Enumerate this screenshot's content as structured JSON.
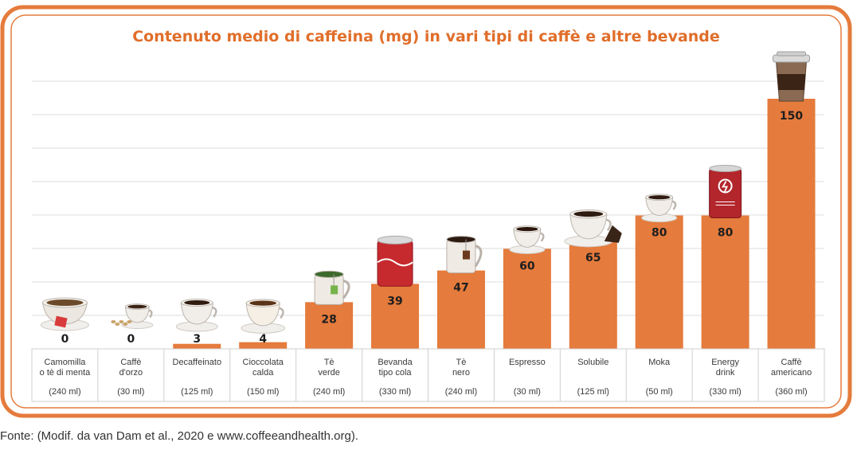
{
  "chart_data": {
    "type": "bar",
    "title": "Contenuto medio di caffeina (mg) in vari tipi di caffè e altre bevande",
    "xlabel": "",
    "ylabel": "",
    "ylim": [
      0,
      150
    ],
    "grid": true,
    "categories": [
      {
        "lines": [
          "Camomilla",
          "o tè di menta"
        ],
        "volume": "(240 ml)",
        "drink": "herbal-tea-cup"
      },
      {
        "lines": [
          "Caffè",
          "d'orzo"
        ],
        "volume": "(30 ml)",
        "drink": "barley-coffee-cup"
      },
      {
        "lines": [
          "Decaffeinato"
        ],
        "volume": "(125 ml)",
        "drink": "decaf-coffee-cup"
      },
      {
        "lines": [
          "Cioccolata",
          "calda"
        ],
        "volume": "(150 ml)",
        "drink": "hot-chocolate-cup"
      },
      {
        "lines": [
          "Tè",
          "verde"
        ],
        "volume": "(240 ml)",
        "drink": "green-tea-mug"
      },
      {
        "lines": [
          "Bevanda",
          "tipo cola"
        ],
        "volume": "(330 ml)",
        "drink": "cola-can"
      },
      {
        "lines": [
          "Tè",
          "nero"
        ],
        "volume": "(240 ml)",
        "drink": "black-tea-mug"
      },
      {
        "lines": [
          "Espresso"
        ],
        "volume": "(30 ml)",
        "drink": "espresso-cup"
      },
      {
        "lines": [
          "Solubile"
        ],
        "volume": "(125 ml)",
        "drink": "instant-coffee-cup"
      },
      {
        "lines": [
          "Moka"
        ],
        "volume": "(50 ml)",
        "drink": "moka-coffee-cup"
      },
      {
        "lines": [
          "Energy",
          "drink"
        ],
        "volume": "(330 ml)",
        "drink": "energy-drink-can"
      },
      {
        "lines": [
          "Caffè",
          "americano"
        ],
        "volume": "(360 ml)",
        "drink": "americano-takeaway-cup"
      }
    ],
    "values": [
      0,
      0,
      3,
      4,
      28,
      39,
      47,
      60,
      65,
      80,
      80,
      150
    ],
    "value_labels": [
      "0",
      "0",
      "3",
      "4",
      "28",
      "39",
      "47",
      "60",
      "65",
      "80",
      "80",
      "150"
    ],
    "bar_color": "#E57B3C"
  },
  "source": "Fonte: (Modif. da van Dam et al., 2020 e www.coffeeandhealth.org).",
  "colors": {
    "frame": "#E57B3C",
    "title": "#E06E2A",
    "grid": "#dddddd",
    "axis_box": "#cfcfcf",
    "text": "#3a3a3a"
  }
}
